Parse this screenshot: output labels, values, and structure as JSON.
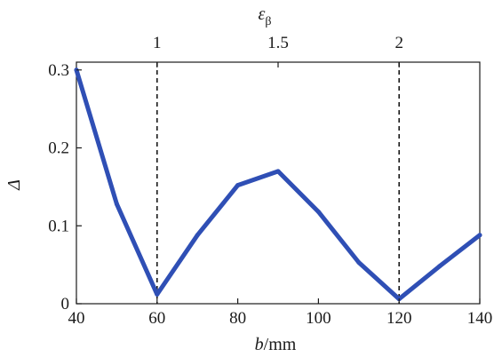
{
  "chart_data": {
    "type": "line",
    "title": "",
    "xlabel_var": "b",
    "xlabel_unit": "/mm",
    "ylabel": "Δ",
    "top_xlabel_var": "ε",
    "top_xlabel_sub": "β",
    "xlim": [
      40,
      140
    ],
    "ylim": [
      0,
      0.31
    ],
    "xticks": [
      40,
      60,
      80,
      100,
      120,
      140
    ],
    "yticks": [
      0,
      0.1,
      0.2,
      0.3
    ],
    "ytick_labels": [
      "0",
      "0.1",
      "0.2",
      "0.3"
    ],
    "top_ticks": [
      {
        "x": 60,
        "label": "1"
      },
      {
        "x": 90,
        "label": "1.5"
      },
      {
        "x": 120,
        "label": "2"
      }
    ],
    "vlines": [
      60,
      120
    ],
    "grid": false,
    "series": [
      {
        "color": "#2f4fb5",
        "x": [
          40,
          50,
          60,
          70,
          80,
          90,
          100,
          110,
          120,
          130,
          140
        ],
        "y": [
          0.3,
          0.128,
          0.012,
          0.088,
          0.152,
          0.17,
          0.118,
          0.053,
          0.006,
          0.048,
          0.088
        ]
      }
    ]
  }
}
